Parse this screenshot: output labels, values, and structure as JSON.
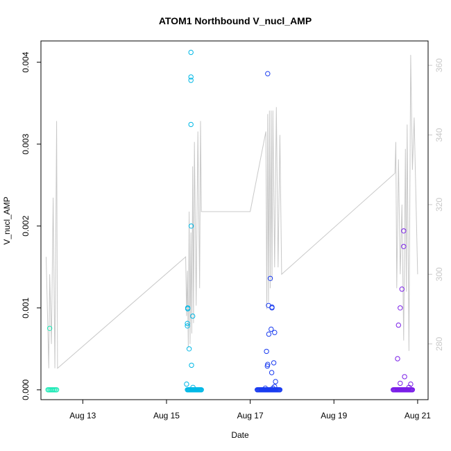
{
  "chart_data": {
    "type": "scatter",
    "title": "ATOM1 Northbound V_nucl_AMP",
    "xlabel": "Date",
    "ylabel": "V_nucl_AMP",
    "xlim": [
      "2023-08-12 00:00",
      "2023-08-21 06:00"
    ],
    "ylim": [
      -0.00012,
      0.00426
    ],
    "y2lim": [
      264,
      367
    ],
    "x_ticks": [
      {
        "date": "2023-08-13 00:00",
        "label": "Aug 13"
      },
      {
        "date": "2023-08-15 00:00",
        "label": "Aug 15"
      },
      {
        "date": "2023-08-17 00:00",
        "label": "Aug 17"
      },
      {
        "date": "2023-08-19 00:00",
        "label": "Aug 19"
      },
      {
        "date": "2023-08-21 00:00",
        "label": "Aug 21"
      }
    ],
    "y_ticks": [
      {
        "value": 0.0,
        "label": "0.000"
      },
      {
        "value": 0.001,
        "label": "0.001"
      },
      {
        "value": 0.002,
        "label": "0.002"
      },
      {
        "value": 0.003,
        "label": "0.003"
      },
      {
        "value": 0.004,
        "label": "0.004"
      }
    ],
    "y2_ticks": [
      {
        "value": 280,
        "label": "280"
      },
      {
        "value": 300,
        "label": "300"
      },
      {
        "value": 320,
        "label": "320"
      },
      {
        "value": 340,
        "label": "340"
      },
      {
        "value": 360,
        "label": "360"
      }
    ],
    "grid": false,
    "legend": "none",
    "series": [
      {
        "color": "#1de9b6",
        "baseline": {
          "start": "2023-08-12 04:00",
          "end": "2023-08-12 09:00",
          "value": 0.0,
          "count": 9
        },
        "points": [
          {
            "x": "2023-08-12 05:00",
            "y": 0.00075
          }
        ]
      },
      {
        "color": "#00b8e6",
        "baseline": {
          "start": "2023-08-15 12:00",
          "end": "2023-08-15 20:00",
          "value": 0.0,
          "count": 22
        },
        "points": [
          {
            "x": "2023-08-15 11:30",
            "y": 7e-05
          },
          {
            "x": "2023-08-15 12:00",
            "y": 0.00078
          },
          {
            "x": "2023-08-15 12:00",
            "y": 0.00081
          },
          {
            "x": "2023-08-15 12:10",
            "y": 0.001
          },
          {
            "x": "2023-08-15 12:10",
            "y": 0.00099
          },
          {
            "x": "2023-08-15 13:00",
            "y": 0.0005
          },
          {
            "x": "2023-08-15 14:20",
            "y": 0.0003
          },
          {
            "x": "2023-08-15 14:10",
            "y": 0.002
          },
          {
            "x": "2023-08-15 14:00",
            "y": 0.00324
          },
          {
            "x": "2023-08-15 14:00",
            "y": 0.00378
          },
          {
            "x": "2023-08-15 14:00",
            "y": 0.00382
          },
          {
            "x": "2023-08-15 14:00",
            "y": 0.00412
          },
          {
            "x": "2023-08-15 15:00",
            "y": 0.0009
          },
          {
            "x": "2023-08-15 15:10",
            "y": 3e-05
          }
        ]
      },
      {
        "color": "#1a3cf0",
        "baseline": {
          "start": "2023-08-17 04:00",
          "end": "2023-08-17 17:00",
          "value": 0.0,
          "count": 34
        },
        "points": [
          {
            "x": "2023-08-17 10:00",
            "y": 0.00386
          },
          {
            "x": "2023-08-17 11:30",
            "y": 0.00136
          },
          {
            "x": "2023-08-17 10:30",
            "y": 0.00103
          },
          {
            "x": "2023-08-17 12:30",
            "y": 0.00101
          },
          {
            "x": "2023-08-17 12:30",
            "y": 0.001
          },
          {
            "x": "2023-08-17 12:00",
            "y": 0.00074
          },
          {
            "x": "2023-08-17 14:00",
            "y": 0.0007
          },
          {
            "x": "2023-08-17 10:40",
            "y": 0.00068
          },
          {
            "x": "2023-08-17 09:20",
            "y": 0.00047
          },
          {
            "x": "2023-08-17 13:30",
            "y": 0.00033
          },
          {
            "x": "2023-08-17 10:00",
            "y": 0.00031
          },
          {
            "x": "2023-08-17 09:50",
            "y": 0.00029
          },
          {
            "x": "2023-08-17 12:20",
            "y": 0.00021
          },
          {
            "x": "2023-08-17 14:30",
            "y": 0.0001
          },
          {
            "x": "2023-08-17 14:00",
            "y": 4e-05
          },
          {
            "x": "2023-08-17 08:40",
            "y": 2e-05
          },
          {
            "x": "2023-08-17 13:00",
            "y": 2e-05
          }
        ]
      },
      {
        "color": "#7a1ee8",
        "baseline": {
          "start": "2023-08-20 10:00",
          "end": "2023-08-20 21:00",
          "value": 0.0,
          "count": 30
        },
        "points": [
          {
            "x": "2023-08-20 16:00",
            "y": 0.00194
          },
          {
            "x": "2023-08-20 16:00",
            "y": 0.00175
          },
          {
            "x": "2023-08-20 15:00",
            "y": 0.00123
          },
          {
            "x": "2023-08-20 14:00",
            "y": 0.001
          },
          {
            "x": "2023-08-20 13:00",
            "y": 0.00079
          },
          {
            "x": "2023-08-20 12:30",
            "y": 0.00038
          },
          {
            "x": "2023-08-20 16:30",
            "y": 0.00016
          },
          {
            "x": "2023-08-20 14:00",
            "y": 8e-05
          },
          {
            "x": "2023-08-20 20:00",
            "y": 7e-05
          },
          {
            "x": "2023-08-20 19:00",
            "y": 3e-05
          }
        ]
      }
    ],
    "secondary_line": {
      "color": "#c8c8c8",
      "axis": "right",
      "points": [
        [
          "2023-08-12 03:00",
          305
        ],
        [
          "2023-08-12 04:30",
          273
        ],
        [
          "2023-08-12 05:00",
          300
        ],
        [
          "2023-08-12 06:00",
          280
        ],
        [
          "2023-08-12 07:00",
          322
        ],
        [
          "2023-08-12 08:00",
          273
        ],
        [
          "2023-08-12 09:00",
          344
        ],
        [
          "2023-08-12 09:30",
          273
        ],
        [
          "2023-08-15 11:00",
          305
        ],
        [
          "2023-08-15 11:30",
          288
        ],
        [
          "2023-08-15 12:00",
          301
        ],
        [
          "2023-08-15 12:30",
          279
        ],
        [
          "2023-08-15 13:00",
          318
        ],
        [
          "2023-08-15 13:30",
          280
        ],
        [
          "2023-08-15 14:00",
          312
        ],
        [
          "2023-08-15 14:30",
          283
        ],
        [
          "2023-08-15 15:00",
          331
        ],
        [
          "2023-08-15 15:30",
          286
        ],
        [
          "2023-08-15 16:00",
          338
        ],
        [
          "2023-08-15 17:00",
          291
        ],
        [
          "2023-08-15 18:00",
          341
        ],
        [
          "2023-08-15 19:00",
          296
        ],
        [
          "2023-08-15 19:30",
          344
        ],
        [
          "2023-08-15 20:00",
          318
        ],
        [
          "2023-08-17 00:00",
          318
        ],
        [
          "2023-08-17 09:00",
          341
        ],
        [
          "2023-08-17 09:30",
          290
        ],
        [
          "2023-08-17 10:00",
          346
        ],
        [
          "2023-08-17 10:30",
          292
        ],
        [
          "2023-08-17 11:00",
          347
        ],
        [
          "2023-08-17 11:30",
          296
        ],
        [
          "2023-08-17 12:00",
          347
        ],
        [
          "2023-08-17 12:30",
          298
        ],
        [
          "2023-08-17 13:00",
          347
        ],
        [
          "2023-08-17 14:00",
          302
        ],
        [
          "2023-08-17 15:00",
          348
        ],
        [
          "2023-08-17 16:00",
          302
        ],
        [
          "2023-08-17 17:00",
          340
        ],
        [
          "2023-08-17 18:00",
          300
        ],
        [
          "2023-08-20 11:00",
          329
        ],
        [
          "2023-08-20 11:30",
          338
        ],
        [
          "2023-08-20 12:00",
          296
        ],
        [
          "2023-08-20 13:00",
          333
        ],
        [
          "2023-08-20 14:00",
          300
        ],
        [
          "2023-08-20 15:00",
          320
        ],
        [
          "2023-08-20 16:00",
          281
        ],
        [
          "2023-08-20 17:00",
          336
        ],
        [
          "2023-08-20 17:30",
          295
        ],
        [
          "2023-08-20 18:00",
          343
        ],
        [
          "2023-08-20 19:00",
          278
        ],
        [
          "2023-08-20 20:00",
          363
        ],
        [
          "2023-08-20 21:00",
          330
        ],
        [
          "2023-08-20 22:00",
          345
        ],
        [
          "2023-08-21 00:00",
          300
        ]
      ]
    }
  }
}
